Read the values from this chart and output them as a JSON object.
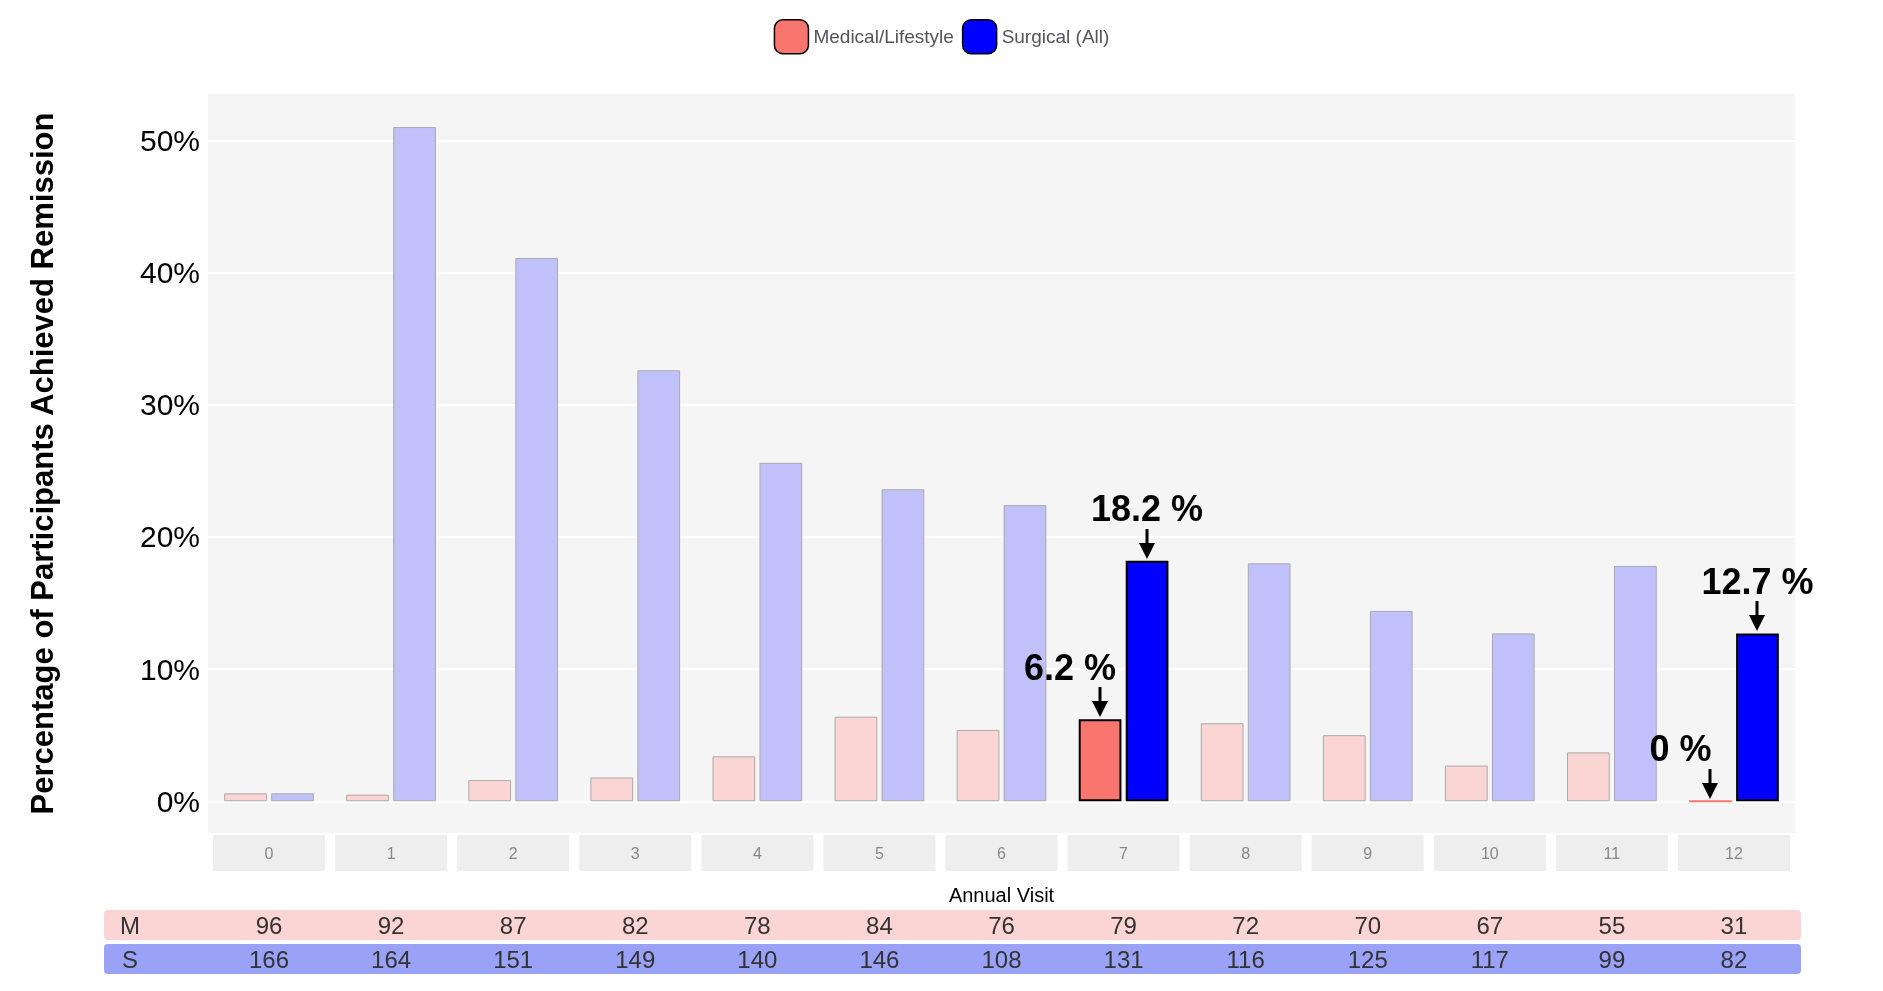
{
  "chart_data": {
    "type": "bar",
    "xlabel": "Annual Visit",
    "ylabel": "Percentage of Participants Achieved Remission",
    "categories": [
      "0",
      "1",
      "2",
      "3",
      "4",
      "5",
      "6",
      "7",
      "8",
      "9",
      "10",
      "11",
      "12"
    ],
    "series": [
      {
        "name": "Medical/Lifestyle",
        "color": "#f8766d",
        "colors": [
          "#fbd5d3",
          "#fbd5d3",
          "#fbd5d3",
          "#fbd5d3",
          "#fbd5d3",
          "#fbd5d3",
          "#fbd5d3",
          "#f8766d",
          "#fbd5d3",
          "#fbd5d3",
          "#fbd5d3",
          "#fbd5d3",
          "#f8766d"
        ],
        "values": [
          0.6,
          0.5,
          1.6,
          1.8,
          3.4,
          6.4,
          5.4,
          6.2,
          5.9,
          5.0,
          2.7,
          3.7,
          0
        ],
        "value_labels": [
          null,
          null,
          null,
          null,
          null,
          null,
          null,
          "6.2 %",
          null,
          null,
          null,
          null,
          "0 %"
        ]
      },
      {
        "name": "Surgical (All)",
        "color": "#0000ff",
        "colors": [
          "#c0c0fb",
          "#c0c0fb",
          "#c0c0fb",
          "#c0c0fb",
          "#c0c0fb",
          "#c0c0fb",
          "#c0c0fb",
          "#0000ff",
          "#c0c0fb",
          "#c0c0fb",
          "#c0c0fb",
          "#c0c0fb",
          "#0000ff"
        ],
        "values": [
          0.6,
          51.0,
          41.1,
          32.6,
          25.6,
          23.6,
          22.4,
          18.2,
          18.0,
          14.4,
          12.7,
          17.8,
          12.7
        ],
        "value_labels": [
          null,
          null,
          null,
          null,
          null,
          null,
          null,
          "18.2 %",
          null,
          null,
          null,
          null,
          "12.7 %"
        ]
      }
    ],
    "ylim": [
      -2.4,
      53.5
    ],
    "yticks": [
      {
        "value": 0,
        "label": "0%"
      },
      {
        "value": 10,
        "label": "10%"
      },
      {
        "value": 20,
        "label": "20%"
      },
      {
        "value": 30,
        "label": "30%"
      },
      {
        "value": 40,
        "label": "40%"
      },
      {
        "value": 50,
        "label": "50%"
      }
    ],
    "grid": "y",
    "legend": "top",
    "annotations": [
      "M",
      "96",
      "92",
      "87",
      "82",
      "78",
      "84",
      "76",
      "79",
      "72",
      "70",
      "67",
      "55",
      "31",
      "S",
      "166",
      "164",
      "151",
      "149",
      "140",
      "146",
      "108",
      "131",
      "116",
      "125",
      "117",
      "99",
      "82"
    ]
  }
}
